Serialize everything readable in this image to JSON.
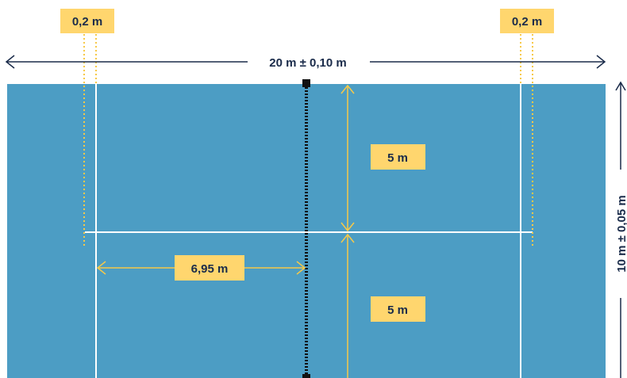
{
  "colors": {
    "court": "#4c9dc4",
    "court_line": "#ffffff",
    "measure": "#f7c948",
    "label_bg": "#ffd66e",
    "text": "#1a2b4a",
    "net": "#222222"
  },
  "labels": {
    "line_width_left": "0,2 m",
    "line_width_right": "0,2 m",
    "length": "20 m ± 0,10 m",
    "width": "10 m ± 0,05 m",
    "half_width_top": "5 m",
    "half_width_bottom": "5 m",
    "distance_to_net": "6,95 m"
  }
}
